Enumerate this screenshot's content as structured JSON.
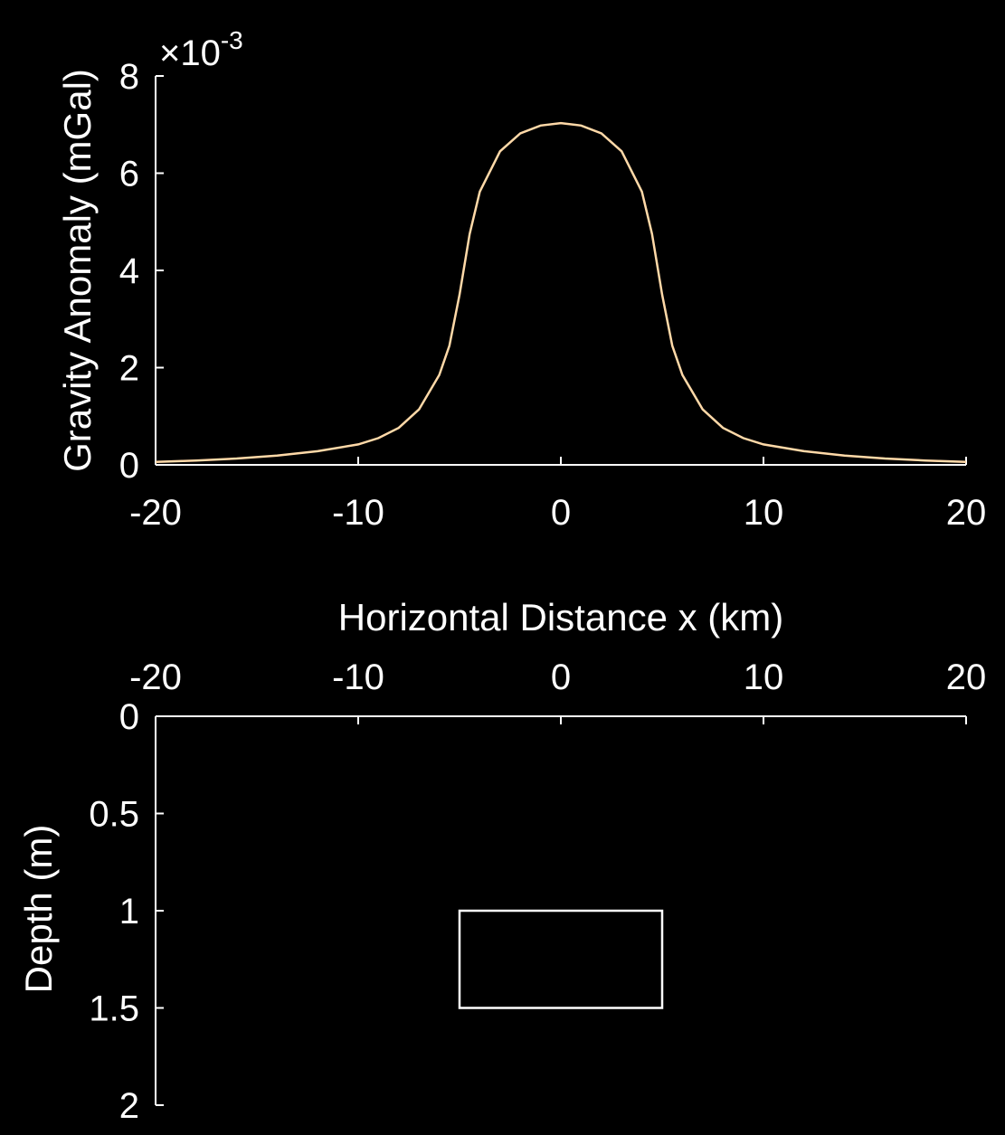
{
  "colors": {
    "background": "#000000",
    "axes": "#ffffff",
    "curve": "#ffd9a8",
    "prism_outline": "#ffffff"
  },
  "chart_data": [
    {
      "id": "gravity",
      "type": "line",
      "title": "",
      "xlabel": "",
      "ylabel": "Gravity Anomaly (mGal)",
      "xlim": [
        -20,
        20
      ],
      "ylim": [
        0,
        8
      ],
      "y_exponent_label": {
        "prefix": "×10",
        "power": "-3"
      },
      "xticks": [
        "-20",
        "-10",
        "0",
        "10",
        "20"
      ],
      "yticks": [
        "0",
        "2",
        "4",
        "6",
        "8"
      ],
      "grid": false,
      "legend": "none",
      "series": [
        {
          "x": [
            -20,
            -18,
            -16,
            -14,
            -12,
            -10,
            -9,
            -8,
            -7,
            -6,
            -5.5,
            -5,
            -4.5,
            -4,
            -3,
            -2,
            -1,
            0,
            1,
            2,
            3,
            4,
            4.5,
            5,
            5.5,
            6,
            7,
            8,
            9,
            10,
            12,
            14,
            16,
            18,
            20
          ],
          "y": [
            0.06,
            0.09,
            0.13,
            0.19,
            0.28,
            0.42,
            0.55,
            0.76,
            1.14,
            1.85,
            2.45,
            3.5,
            4.75,
            5.62,
            6.45,
            6.82,
            6.98,
            7.03,
            6.98,
            6.82,
            6.45,
            5.62,
            4.75,
            3.5,
            2.45,
            1.85,
            1.14,
            0.76,
            0.55,
            0.42,
            0.28,
            0.19,
            0.13,
            0.09,
            0.06
          ]
        }
      ]
    },
    {
      "id": "model",
      "type": "diagram",
      "title": "",
      "xlabel": "Horizontal Distance x (km)",
      "ylabel": "Depth (m)",
      "xlim": [
        -20,
        20
      ],
      "ylim": [
        0,
        2
      ],
      "y_reversed": true,
      "x_axis_position": "top",
      "xticks": [
        "-20",
        "-10",
        "0",
        "10",
        "20"
      ],
      "yticks": [
        "0",
        "0.5",
        "1",
        "1.5",
        "2"
      ],
      "grid": false,
      "prism": {
        "x": [
          -5,
          5
        ],
        "depth": [
          1,
          1.5
        ]
      }
    }
  ]
}
